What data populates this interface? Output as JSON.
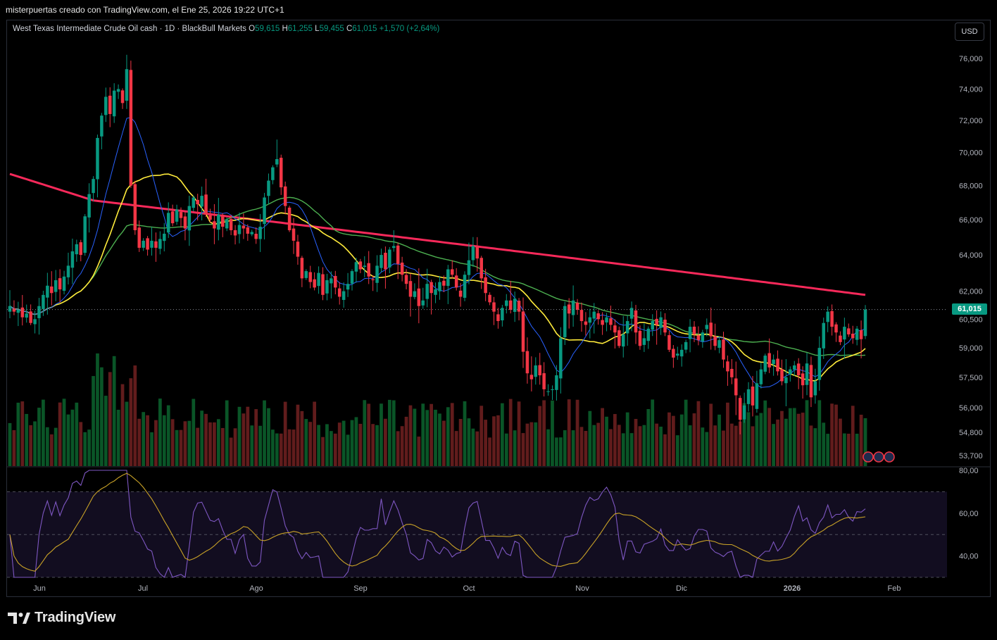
{
  "header": {
    "byline": "misterpuertas creado con TradingView.com, el Ene 25, 2026 19:22 UTC+1"
  },
  "legend": {
    "symbol": "West Texas Intermediate Crude Oil cash · 1D · BlackBull Markets",
    "o_label": "O",
    "o_value": "59,615",
    "h_label": "H",
    "h_value": "61,255",
    "l_label": "L",
    "l_value": "59,455",
    "c_label": "C",
    "c_value": "61,015",
    "change": "+1,570 (+2,64%)"
  },
  "currency_button": "USD",
  "last_price_label": "61,015",
  "footer": {
    "brand": "TradingView"
  },
  "colors": {
    "up": "#089981",
    "down": "#f23645",
    "ma200": "#f7295a",
    "ma50": "#4caf50",
    "ma20": "#ffeb3b",
    "ma10": "#2962ff",
    "rsi": "#7e57c2",
    "rsi_ma": "#c9a227"
  },
  "chart_data": [
    {
      "type": "candlestick",
      "title": "West Texas Intermediate Crude Oil cash · 1D · BlackBull Markets",
      "x_ticks": [
        "Jun",
        "Jul",
        "Ago",
        "Sep",
        "Oct",
        "Nov",
        "Dic",
        "2026",
        "Feb"
      ],
      "y_ticks": [
        "76,000",
        "74,000",
        "72,000",
        "70,000",
        "68,000",
        "66,000",
        "64,000",
        "62,000",
        "60,500",
        "59,000",
        "57,500",
        "56,000",
        "54,800",
        "53,700"
      ],
      "y_tick_values": [
        76.0,
        74.0,
        72.0,
        70.0,
        68.0,
        66.0,
        64.0,
        62.0,
        60.5,
        59.0,
        57.5,
        56.0,
        54.8,
        53.7
      ],
      "ylim": [
        53.2,
        77.0
      ],
      "scale": "log",
      "last_price": 61.015,
      "closes": [
        61.2,
        60.9,
        61.0,
        60.6,
        60.8,
        60.3,
        60.5,
        61.2,
        61.8,
        62.3,
        61.9,
        62.6,
        62.1,
        62.8,
        63.4,
        64.2,
        64.6,
        64.0,
        66.2,
        67.5,
        68.4,
        70.9,
        72.3,
        73.5,
        72.4,
        73.9,
        74.0,
        73.1,
        75.3,
        68.0,
        65.4,
        64.4,
        64.8,
        64.3,
        64.8,
        64.4,
        64.9,
        65.2,
        66.4,
        65.8,
        66.6,
        66.1,
        65.5,
        66.8,
        67.3,
        66.9,
        67.4,
        66.3,
        66.0,
        65.5,
        66.3,
        65.6,
        66.0,
        65.4,
        65.1,
        65.7,
        65.5,
        65.2,
        65.3,
        64.9,
        65.6,
        67.3,
        68.3,
        69.1,
        69.6,
        67.9,
        66.8,
        65.4,
        64.8,
        63.9,
        62.7,
        63.1,
        62.5,
        62.2,
        63.0,
        61.8,
        62.6,
        62.7,
        62.2,
        61.7,
        62.0,
        62.4,
        63.1,
        63.6,
        63.2,
        63.4,
        62.8,
        62.6,
        63.4,
        64.0,
        63.2,
        64.3,
        64.5,
        63.5,
        62.9,
        62.4,
        61.7,
        62.0,
        61.2,
        61.5,
        62.4,
        61.9,
        62.1,
        62.5,
        62.3,
        63.2,
        62.9,
        62.2,
        61.7,
        62.9,
        63.7,
        64.5,
        63.8,
        62.7,
        61.9,
        61.4,
        60.9,
        60.4,
        61.1,
        61.5,
        61.0,
        61.6,
        60.9,
        58.8,
        57.7,
        57.4,
        58.1,
        57.6,
        56.9,
        56.8,
        56.9,
        57.6,
        59.5,
        61.2,
        60.8,
        61.5,
        61.0,
        60.4,
        60.2,
        60.6,
        60.9,
        60.5,
        60.2,
        60.6,
        60.2,
        59.8,
        59.1,
        59.7,
        60.4,
        61.1,
        59.8,
        59.1,
        59.5,
        60.0,
        60.4,
        60.2,
        60.6,
        59.8,
        58.9,
        58.5,
        58.7,
        58.9,
        59.3,
        60.1,
        59.7,
        59.4,
        59.8,
        60.2,
        59.6,
        59.1,
        59.4,
        58.4,
        57.8,
        57.5,
        56.6,
        55.4,
        56.1,
        56.9,
        56.1,
        57.2,
        57.9,
        58.6,
        58.0,
        58.4,
        57.8,
        57.3,
        57.5,
        57.9,
        58.1,
        57.6,
        57.1,
        58.2,
        56.5,
        57.3,
        59.0,
        60.3,
        60.9,
        60.1,
        59.8,
        59.3,
        60.1,
        59.7,
        59.5,
        60.0,
        59.45,
        61.015
      ],
      "volume": "rows of green/red bars beneath price, relative",
      "indicators": [
        "MA 10",
        "MA 20",
        "MA 50",
        "MA 200"
      ]
    },
    {
      "type": "line",
      "title": "RSI",
      "y_ticks": [
        "80,00",
        "60,00",
        "40,00"
      ],
      "y_tick_values": [
        80,
        60,
        40
      ],
      "ylim": [
        30,
        80
      ],
      "bands": [
        70,
        50,
        30
      ]
    }
  ]
}
